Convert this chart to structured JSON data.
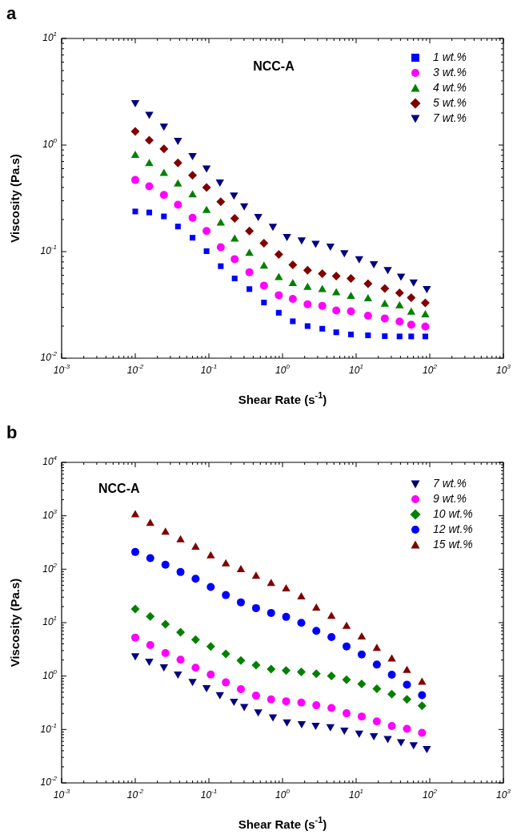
{
  "chart_data": [
    {
      "type": "scatter",
      "title": "NCC-A",
      "xlabel": "Shear Rate (s$^{-1}$)",
      "ylabel": "Viscosity (Pa.s)",
      "annotations": [
        "a"
      ],
      "log": "xy",
      "legend": "top right",
      "xlim": [
        0.001,
        1000
      ],
      "ylim": [
        0.01,
        10
      ],
      "xticks": [
        {
          "value": 0.001,
          "label": "10$^{-3}$"
        },
        {
          "value": 0.01,
          "label": "10$^{-2}$"
        },
        {
          "value": 0.1,
          "label": "10$^{-1}$"
        },
        {
          "value": 1,
          "label": "10$^{0}$"
        },
        {
          "value": 10,
          "label": "10$^{1}$"
        },
        {
          "value": 100,
          "label": "10$^{2}$"
        },
        {
          "value": 1000,
          "label": "10$^{3}$"
        }
      ],
      "yticks": [
        {
          "value": 0.01,
          "label": "10$^{-2}$"
        },
        {
          "value": 0.1,
          "label": "10$^{-1}$"
        },
        {
          "value": 1,
          "label": "10$^{0}$"
        },
        {
          "value": 10,
          "label": "10$^{1}$"
        }
      ],
      "series": [
        {
          "name": "1 wt.%",
          "color": "#0000ff",
          "marker": "square",
          "x": [
            0.01,
            0.0155,
            0.0245,
            0.038,
            0.06,
            0.093,
            0.145,
            0.224,
            0.355,
            0.56,
            0.89,
            1.38,
            2.19,
            3.47,
            5.37,
            8.5,
            14.5,
            24.5,
            38.9,
            56,
            87
          ],
          "values": [
            0.238,
            0.233,
            0.214,
            0.172,
            0.135,
            0.101,
            0.073,
            0.056,
            0.0445,
            0.0333,
            0.0267,
            0.0222,
            0.02,
            0.0189,
            0.0175,
            0.0167,
            0.0164,
            0.0161,
            0.016,
            0.016,
            0.016
          ]
        },
        {
          "name": "3 wt.%",
          "color": "#ff00ff",
          "marker": "circle",
          "x": [
            0.01,
            0.0155,
            0.0245,
            0.038,
            0.06,
            0.093,
            0.145,
            0.224,
            0.355,
            0.56,
            0.89,
            1.38,
            2.19,
            3.47,
            5.37,
            8.5,
            14.5,
            24.5,
            38.9,
            56,
            87
          ],
          "values": [
            0.47,
            0.41,
            0.34,
            0.275,
            0.208,
            0.156,
            0.11,
            0.085,
            0.064,
            0.048,
            0.039,
            0.036,
            0.032,
            0.031,
            0.028,
            0.0275,
            0.025,
            0.0236,
            0.0221,
            0.0206,
            0.0198
          ]
        },
        {
          "name": "4 wt.%",
          "color": "#008000",
          "marker": "triangle",
          "x": [
            0.01,
            0.0155,
            0.0245,
            0.038,
            0.06,
            0.093,
            0.145,
            0.224,
            0.355,
            0.56,
            0.89,
            1.38,
            2.19,
            3.47,
            5.37,
            8.5,
            14.5,
            24.5,
            38.9,
            56,
            87
          ],
          "values": [
            0.8,
            0.67,
            0.54,
            0.43,
            0.34,
            0.243,
            0.185,
            0.131,
            0.096,
            0.073,
            0.057,
            0.05,
            0.046,
            0.044,
            0.041,
            0.038,
            0.036,
            0.032,
            0.031,
            0.027,
            0.0255
          ]
        },
        {
          "name": "5 wt.%",
          "color": "#800000",
          "marker": "diamond",
          "x": [
            0.01,
            0.0155,
            0.0245,
            0.038,
            0.06,
            0.093,
            0.145,
            0.224,
            0.355,
            0.56,
            0.89,
            1.38,
            2.19,
            3.47,
            5.37,
            8.5,
            14.5,
            24.5,
            38.9,
            56,
            87
          ],
          "values": [
            1.34,
            1.11,
            0.92,
            0.68,
            0.52,
            0.4,
            0.294,
            0.205,
            0.156,
            0.12,
            0.094,
            0.075,
            0.067,
            0.062,
            0.059,
            0.056,
            0.05,
            0.045,
            0.041,
            0.037,
            0.033
          ]
        },
        {
          "name": "7 wt.%",
          "color": "#000080",
          "marker": "triangle_down",
          "x": [
            0.01,
            0.0155,
            0.0245,
            0.038,
            0.06,
            0.093,
            0.141,
            0.219,
            0.302,
            0.468,
            0.741,
            1.15,
            1.82,
            2.82,
            4.47,
            6.92,
            11,
            17.4,
            26.9,
            40.7,
            60.3,
            91.2
          ],
          "values": [
            2.5,
            1.95,
            1.51,
            1.11,
            0.8,
            0.61,
            0.45,
            0.34,
            0.27,
            0.214,
            0.173,
            0.139,
            0.129,
            0.12,
            0.113,
            0.098,
            0.086,
            0.077,
            0.068,
            0.059,
            0.052,
            0.045
          ]
        }
      ]
    },
    {
      "type": "scatter",
      "title": "NCC-A",
      "xlabel": "Shear Rate (s$^{-1}$)",
      "ylabel": "Viscosity (Pa.s)",
      "annotations": [
        "b"
      ],
      "log": "xy",
      "legend": "top right",
      "xlim": [
        0.001,
        1000
      ],
      "ylim": [
        0.01,
        10000
      ],
      "xticks": [
        {
          "value": 0.001,
          "label": "10$^{-3}$"
        },
        {
          "value": 0.01,
          "label": "10$^{-2}$"
        },
        {
          "value": 0.1,
          "label": "10$^{-1}$"
        },
        {
          "value": 1,
          "label": "10$^{0}$"
        },
        {
          "value": 10,
          "label": "10$^{1}$"
        },
        {
          "value": 100,
          "label": "10$^{2}$"
        },
        {
          "value": 1000,
          "label": "10$^{3}$"
        }
      ],
      "yticks": [
        {
          "value": 0.01,
          "label": "10$^{-2}$"
        },
        {
          "value": 0.1,
          "label": "10$^{-1}$"
        },
        {
          "value": 1,
          "label": "10$^{0}$"
        },
        {
          "value": 10,
          "label": "10$^{1}$"
        },
        {
          "value": 100,
          "label": "10$^{2}$"
        },
        {
          "value": 1000,
          "label": "10$^{3}$"
        },
        {
          "value": 10000,
          "label": "10$^{4}$"
        }
      ],
      "series": [
        {
          "name": "7 wt.%",
          "color": "#000080",
          "marker": "triangle_down",
          "x": [
            0.01,
            0.0155,
            0.0245,
            0.038,
            0.06,
            0.093,
            0.141,
            0.219,
            0.302,
            0.468,
            0.741,
            1.15,
            1.82,
            2.82,
            4.47,
            6.92,
            11,
            17.4,
            26.9,
            40.7,
            60.3,
            91.2
          ],
          "values": [
            2.4,
            1.9,
            1.5,
            1.1,
            0.8,
            0.61,
            0.45,
            0.34,
            0.27,
            0.214,
            0.173,
            0.139,
            0.129,
            0.12,
            0.113,
            0.098,
            0.086,
            0.077,
            0.068,
            0.059,
            0.052,
            0.044
          ]
        },
        {
          "name": "9 wt.%",
          "color": "#ff00ff",
          "marker": "circle",
          "x": [
            0.01,
            0.016,
            0.0257,
            0.0412,
            0.066,
            0.106,
            0.17,
            0.272,
            0.437,
            0.7,
            1.12,
            1.8,
            2.88,
            4.62,
            7.41,
            11.9,
            19.1,
            30.5,
            49,
            78.5
          ],
          "values": [
            5.25,
            3.8,
            2.69,
            2.02,
            1.43,
            1.07,
            0.76,
            0.57,
            0.43,
            0.366,
            0.337,
            0.318,
            0.284,
            0.253,
            0.201,
            0.175,
            0.142,
            0.116,
            0.103,
            0.0865
          ]
        },
        {
          "name": "10 wt.%",
          "color": "#008000",
          "marker": "diamond",
          "x": [
            0.01,
            0.016,
            0.0257,
            0.0412,
            0.066,
            0.106,
            0.17,
            0.272,
            0.437,
            0.7,
            1.12,
            1.8,
            2.88,
            4.62,
            7.41,
            11.9,
            19.1,
            30.5,
            49,
            78.5
          ],
          "values": [
            18,
            13.1,
            9.3,
            6.6,
            4.79,
            3.59,
            2.6,
            1.95,
            1.6,
            1.35,
            1.27,
            1.2,
            1.11,
            1.01,
            0.85,
            0.71,
            0.58,
            0.46,
            0.366,
            0.277
          ]
        },
        {
          "name": "12 wt.%",
          "color": "#0000ff",
          "marker": "circle",
          "x": [
            0.01,
            0.016,
            0.0257,
            0.0412,
            0.066,
            0.106,
            0.17,
            0.272,
            0.437,
            0.7,
            1.12,
            1.8,
            2.88,
            4.62,
            7.41,
            11.9,
            19.1,
            30.5,
            49,
            78.5
          ],
          "values": [
            210,
            161,
            121,
            88.5,
            66.4,
            46.5,
            32.8,
            24,
            18.7,
            15.2,
            12.8,
            9.9,
            7,
            5.37,
            3.59,
            2.54,
            1.64,
            1.06,
            0.69,
            0.44
          ]
        },
        {
          "name": "15 wt.%",
          "color": "#800000",
          "marker": "triangle",
          "x": [
            0.01,
            0.016,
            0.0257,
            0.0412,
            0.066,
            0.106,
            0.17,
            0.272,
            0.437,
            0.7,
            1.12,
            1.8,
            2.88,
            4.62,
            7.41,
            11.9,
            19.1,
            30.5,
            49,
            78.5
          ],
          "values": [
            1042,
            721,
            493,
            353,
            256,
            177,
            125,
            98,
            73.6,
            54,
            42.8,
            30.3,
            18.7,
            13.1,
            8.5,
            5.37,
            3.27,
            2.07,
            1.27,
            0.76
          ]
        }
      ]
    }
  ]
}
